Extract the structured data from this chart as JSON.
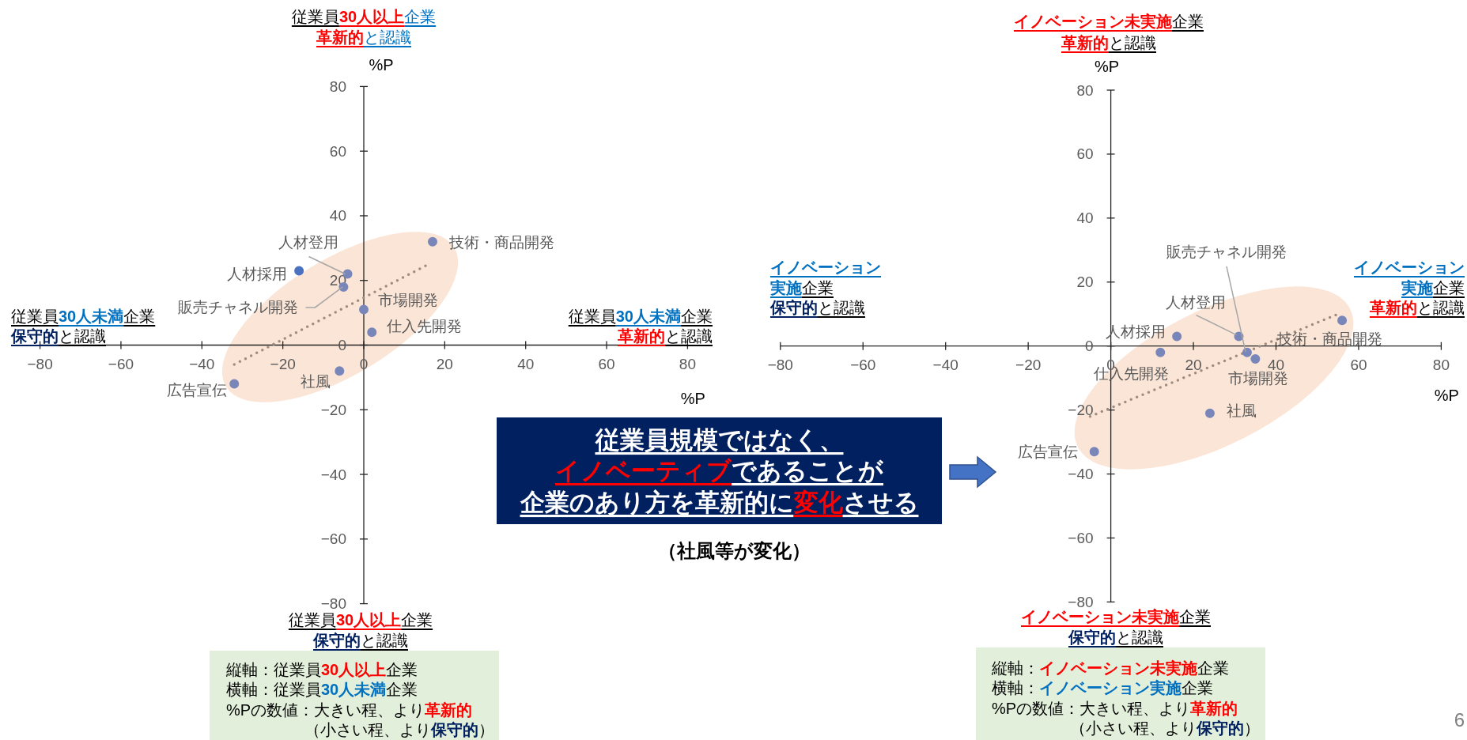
{
  "chart_data": [
    {
      "type": "scatter",
      "xlabel": "%P",
      "ylabel": "%P",
      "xlim": [
        -80,
        80
      ],
      "ylim": [
        -80,
        80
      ],
      "xticks": [
        -80,
        -60,
        -40,
        -20,
        0,
        20,
        40,
        60,
        80
      ],
      "yticks": [
        -80,
        -60,
        -40,
        -20,
        0,
        20,
        40,
        60,
        80
      ],
      "marker": "circle",
      "series": [
        {
          "name": "技術・商品開発",
          "color": "#7886b9",
          "x": [
            17
          ],
          "values": [
            32
          ]
        },
        {
          "name": "人材採用",
          "color": "#4a72c0",
          "x": [
            -16
          ],
          "values": [
            23
          ]
        },
        {
          "name": "人材登用",
          "color": "#7886b9",
          "x": [
            -4
          ],
          "values": [
            22
          ]
        },
        {
          "name": "販売チャネル開発",
          "color": "#7886b9",
          "x": [
            -5
          ],
          "values": [
            18
          ]
        },
        {
          "name": "市場開発",
          "color": "#7886b9",
          "x": [
            0
          ],
          "values": [
            11
          ]
        },
        {
          "name": "仕入先開発",
          "color": "#7886b9",
          "x": [
            2
          ],
          "values": [
            4
          ]
        },
        {
          "name": "社風",
          "color": "#7886b9",
          "x": [
            -6
          ],
          "values": [
            -8
          ]
        },
        {
          "name": "広告宣伝",
          "color": "#7886b9",
          "x": [
            -32
          ],
          "values": [
            -12
          ]
        },
        {
          "type": "line",
          "color": "#a08c7e",
          "x": [
            -32,
            16
          ],
          "values": [
            -6,
            25
          ],
          "line_style": "dotted",
          "marker": "none"
        }
      ],
      "annotations": [
        "従業員",
        "30人以上",
        "企業",
        "革新的",
        "と認識",
        "従業員",
        "30人未満",
        "企業",
        "保守的",
        "と認識",
        "従業員",
        "30人未満",
        "企業",
        "革新的",
        "と認識",
        "従業員",
        "30人以上",
        "企業",
        "保守的",
        "と認識",
        "縦軸：従業員",
        "30人以上",
        "企業",
        "横軸：従業員",
        "30人未満",
        "企業",
        "%Pの数値：大きい程、より",
        "革新的",
        "（小さい程、より",
        "保守的",
        "）"
      ]
    },
    {
      "type": "other",
      "annotations": [
        "従業員規模ではなく、",
        "イノベーティブ",
        "であることが",
        "企業のあり方を革新的に",
        "変化",
        "させる",
        "（社風等が変化）",
        "6"
      ]
    },
    {
      "type": "scatter",
      "xlabel": "%P",
      "ylabel": "%P",
      "xlim": [
        -80,
        80
      ],
      "ylim": [
        -80,
        80
      ],
      "xticks": [
        -80,
        -60,
        -40,
        -20,
        0,
        20,
        40,
        60,
        80
      ],
      "yticks": [
        -80,
        -60,
        -40,
        -20,
        0,
        20,
        40,
        60,
        80
      ],
      "marker": "circle",
      "series": [
        {
          "name": "技術・商品開発",
          "color": "#7886b9",
          "x": [
            56
          ],
          "values": [
            8
          ]
        },
        {
          "name": "人材採用",
          "color": "#7886b9",
          "x": [
            16
          ],
          "values": [
            3
          ]
        },
        {
          "name": "人材登用",
          "color": "#7886b9",
          "x": [
            31
          ],
          "values": [
            3
          ]
        },
        {
          "name": "販売チャネル開発",
          "color": "#7886b9",
          "x": [
            33
          ],
          "values": [
            -2
          ]
        },
        {
          "name": "市場開発",
          "color": "#7886b9",
          "x": [
            35
          ],
          "values": [
            -4
          ]
        },
        {
          "name": "仕入先開発",
          "color": "#7886b9",
          "x": [
            12
          ],
          "values": [
            -2
          ]
        },
        {
          "name": "社風",
          "color": "#7886b9",
          "x": [
            24
          ],
          "values": [
            -21
          ]
        },
        {
          "name": "広告宣伝",
          "color": "#7886b9",
          "x": [
            -4
          ],
          "values": [
            -33
          ]
        },
        {
          "type": "line",
          "color": "#a08c7e",
          "x": [
            -5,
            55
          ],
          "values": [
            -22,
            10
          ],
          "line_style": "dotted",
          "marker": "none"
        }
      ],
      "annotations": [
        "イノベーション未実施",
        "企業",
        "革新的",
        "と認識",
        "イノベーション",
        "実施",
        "企業",
        "保守的",
        "と認識",
        "イノベーション",
        "実施",
        "企業",
        "革新的",
        "と認識",
        "イノベーション未実施",
        "企業",
        "保守的",
        "と認識",
        "縦軸：",
        "イノベーション未実施",
        "企業",
        "横軸：",
        "イノベーション実施",
        "企業",
        "%Pの数値：大きい程、より",
        "革新的",
        "（小さい程、より",
        "保守的",
        "）"
      ]
    }
  ]
}
